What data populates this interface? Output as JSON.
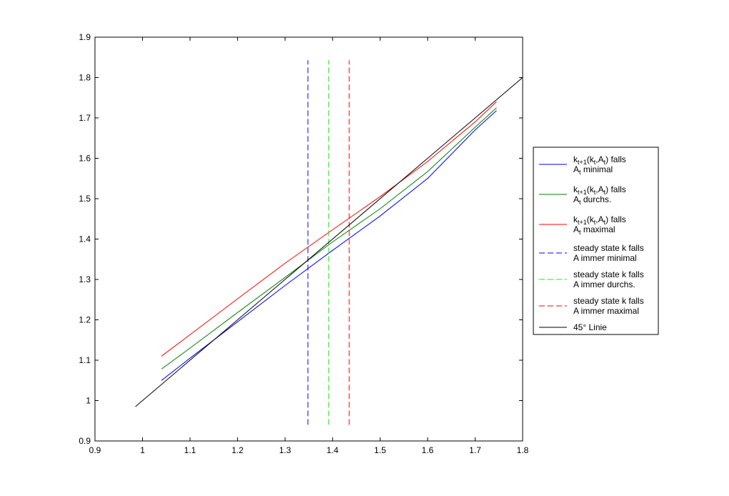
{
  "chart_data": {
    "type": "line",
    "xlim": [
      0.9,
      1.8
    ],
    "ylim": [
      0.9,
      1.9
    ],
    "xticks": [
      "0.9",
      "1",
      "1.1",
      "1.2",
      "1.3",
      "1.4",
      "1.5",
      "1.6",
      "1.7",
      "1.8"
    ],
    "yticks": [
      "0.9",
      "1",
      "1.1",
      "1.2",
      "1.3",
      "1.4",
      "1.5",
      "1.6",
      "1.7",
      "1.8",
      "1.9"
    ],
    "grid": false,
    "legend_position": "outside-right",
    "series": [
      {
        "line1": "k_{t+1}(k_t,A_t) falls",
        "line2": "A_t minimal",
        "color": "#0000ff",
        "style": "solid",
        "x": [
          1.04,
          1.1,
          1.2,
          1.3,
          1.4,
          1.5,
          1.6,
          1.7,
          1.745
        ],
        "y": [
          1.05,
          1.105,
          1.195,
          1.285,
          1.372,
          1.457,
          1.55,
          1.67,
          1.718
        ]
      },
      {
        "line1": "k_{t+1}(k_t,A_t) falls",
        "line2": "A_t durchs.",
        "color": "#008000",
        "style": "solid",
        "x": [
          1.04,
          1.1,
          1.2,
          1.3,
          1.4,
          1.5,
          1.6,
          1.7,
          1.745
        ],
        "y": [
          1.078,
          1.13,
          1.218,
          1.305,
          1.393,
          1.475,
          1.567,
          1.677,
          1.725
        ]
      },
      {
        "line1": "k_{t+1}(k_t,A_t) falls",
        "line2": "A_t maximal",
        "color": "#ff0000",
        "style": "solid",
        "x": [
          1.04,
          1.1,
          1.2,
          1.3,
          1.4,
          1.5,
          1.6,
          1.7,
          1.745
        ],
        "y": [
          1.11,
          1.163,
          1.252,
          1.34,
          1.423,
          1.505,
          1.592,
          1.69,
          1.74
        ]
      },
      {
        "line1": "steady state k falls",
        "line2": "A immer minimal",
        "color": "#0000ff",
        "style": "dashed",
        "x": [
          1.348,
          1.348
        ],
        "y": [
          0.94,
          1.843
        ]
      },
      {
        "line1": "steady state k falls",
        "line2": "A immer durchs.",
        "color": "#00ff00",
        "style": "dashed",
        "x": [
          1.392,
          1.392
        ],
        "y": [
          0.94,
          1.843
        ]
      },
      {
        "line1": "steady state k falls",
        "line2": "A immer maximal",
        "color": "#ff0000",
        "style": "dashed",
        "x": [
          1.435,
          1.435
        ],
        "y": [
          0.94,
          1.843
        ]
      },
      {
        "line1": "45° Linie",
        "color": "#000000",
        "style": "solid",
        "x": [
          0.985,
          1.8
        ],
        "y": [
          0.985,
          1.8
        ]
      }
    ]
  }
}
